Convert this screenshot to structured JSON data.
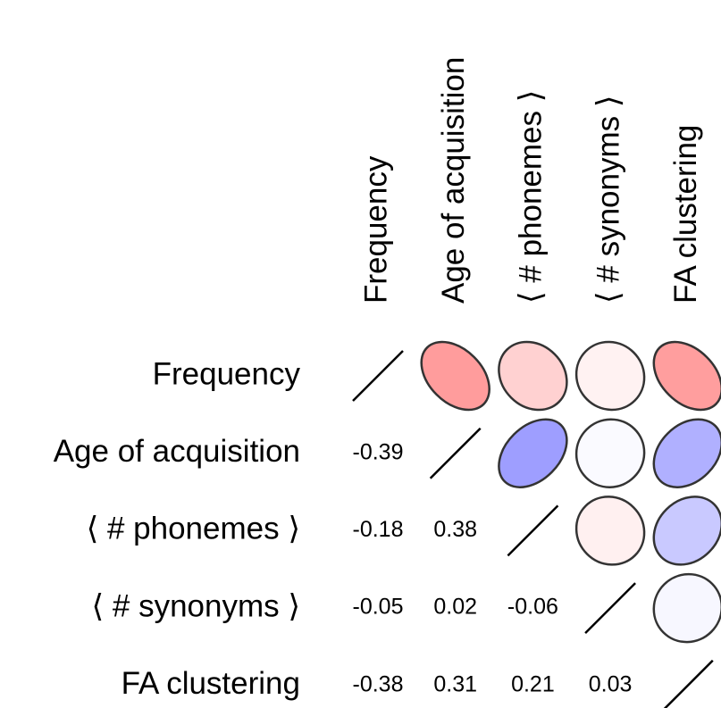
{
  "chart_data": {
    "type": "corrplot",
    "variables": [
      "Frequency",
      "Age of acquisition",
      "⟨ # phonemes ⟩",
      "⟨ # synonyms ⟩",
      "FA clustering"
    ],
    "values": [
      [],
      [
        -0.39
      ],
      [
        -0.18,
        0.38
      ],
      [
        -0.05,
        0.02,
        -0.06
      ],
      [
        -0.38,
        0.31,
        0.21,
        0.03
      ]
    ],
    "color_negative": "#ff0000",
    "color_positive": "#0000ff"
  }
}
